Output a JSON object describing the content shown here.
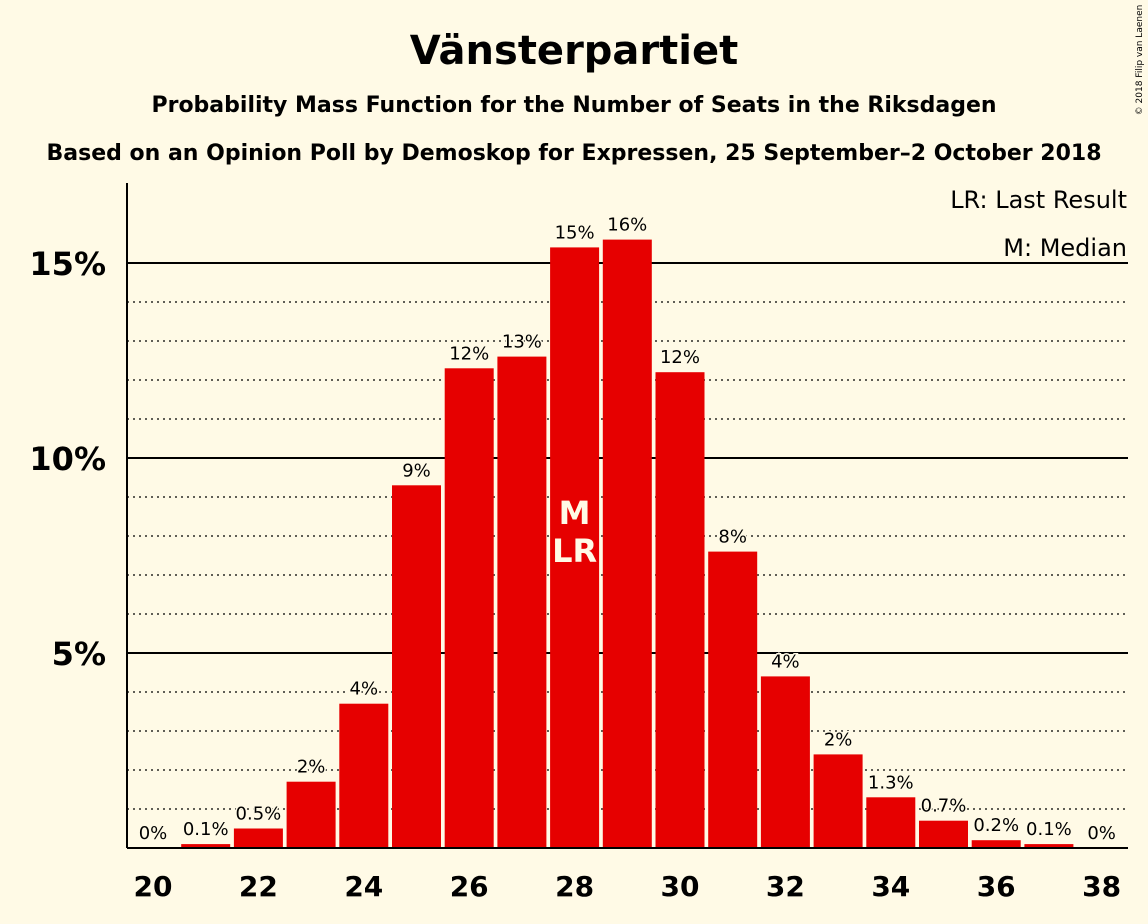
{
  "chart_data": {
    "type": "bar",
    "title": "Vänsterpartiet",
    "subtitle": "Probability Mass Function for the Number of Seats in the Riksdagen",
    "subtitle2": "Based on an Opinion Poll by Demoskop for Expressen, 25 September–2 October 2018",
    "copyright": "© 2018 Filip van Laenen",
    "categories": [
      20,
      21,
      22,
      23,
      24,
      25,
      26,
      27,
      28,
      29,
      30,
      31,
      32,
      33,
      34,
      35,
      36,
      37,
      38
    ],
    "values": [
      0,
      0.1,
      0.5,
      1.7,
      3.7,
      9.3,
      12.3,
      12.6,
      15.4,
      15.6,
      12.2,
      7.6,
      4.4,
      2.4,
      1.3,
      0.7,
      0.2,
      0.1,
      0
    ],
    "data_labels": [
      "0%",
      "0.1%",
      "0.5%",
      "2%",
      "4%",
      "9%",
      "12%",
      "13%",
      "15%",
      "16%",
      "12%",
      "8%",
      "4%",
      "2%",
      "1.3%",
      "0.7%",
      "0.2%",
      "0.1%",
      "0%"
    ],
    "x_tick_labels": [
      "20",
      "22",
      "24",
      "26",
      "28",
      "30",
      "32",
      "34",
      "36",
      "38"
    ],
    "y_tick_labels": [
      "5%",
      "10%",
      "15%"
    ],
    "y_ticks": [
      5,
      10,
      15
    ],
    "ylim": [
      0,
      17
    ],
    "bar_color": "#e60000",
    "background_color": "#fffae6",
    "grid": true,
    "markers": [
      {
        "seat": 28,
        "lines": [
          "M",
          "LR"
        ]
      }
    ],
    "legend": {
      "placement": "top-right",
      "entries": [
        "LR: Last Result",
        "M: Median"
      ]
    }
  }
}
